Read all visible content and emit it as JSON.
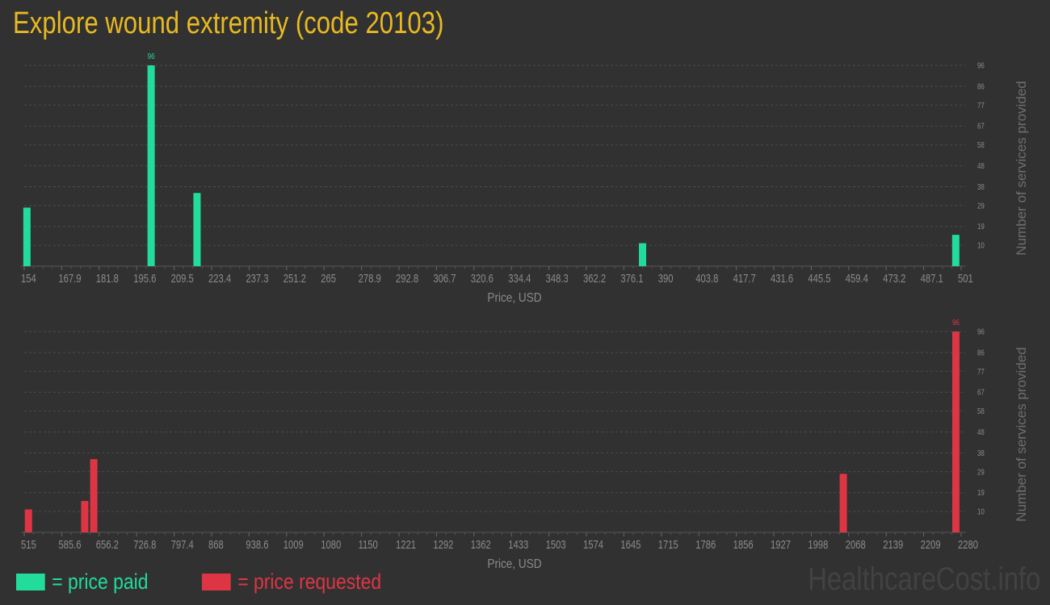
{
  "title": "Explore wound extremity (code 20103)",
  "legend": [
    {
      "label": "= price paid",
      "color": "#21dc9b"
    },
    {
      "label": "= price requested",
      "color": "#de3545"
    }
  ],
  "watermark": "HealthcareCost.info",
  "chart_data": [
    {
      "type": "bar",
      "xlabel": "Price, USD",
      "ylabel": "Number of services provided",
      "color": "#21dc9b",
      "xlim": [
        154,
        501
      ],
      "ylim": [
        0,
        96
      ],
      "grid": true,
      "x_ticks": [
        "154",
        "167.9",
        "181.8",
        "195.6",
        "209.5",
        "223.4",
        "237.3",
        "251.2",
        "265",
        "278.9",
        "292.8",
        "306.7",
        "320.6",
        "334.4",
        "348.3",
        "362.2",
        "376.1",
        "390",
        "403.8",
        "417.7",
        "431.6",
        "445.5",
        "459.4",
        "473.2",
        "487.1",
        "501"
      ],
      "y_ticks": [
        "10",
        "19",
        "29",
        "38",
        "48",
        "58",
        "67",
        "77",
        "86",
        "96"
      ],
      "bars": [
        {
          "x": 155,
          "value": 28
        },
        {
          "x": 201,
          "value": 96,
          "label": "96"
        },
        {
          "x": 218,
          "value": 35
        },
        {
          "x": 383,
          "value": 11
        },
        {
          "x": 499,
          "value": 15
        }
      ]
    },
    {
      "type": "bar",
      "xlabel": "Price, USD",
      "ylabel": "Number of services provided",
      "color": "#de3545",
      "xlim": [
        515,
        2280
      ],
      "ylim": [
        0,
        96
      ],
      "grid": true,
      "x_ticks": [
        "515",
        "585.6",
        "656.2",
        "726.8",
        "797.4",
        "868",
        "938.6",
        "1009",
        "1080",
        "1150",
        "1221",
        "1292",
        "1362",
        "1433",
        "1503",
        "1574",
        "1645",
        "1715",
        "1786",
        "1856",
        "1927",
        "1998",
        "2068",
        "2139",
        "2209",
        "2280"
      ],
      "y_ticks": [
        "10",
        "19",
        "29",
        "38",
        "48",
        "58",
        "67",
        "77",
        "86",
        "96"
      ],
      "bars": [
        {
          "x": 523,
          "value": 11
        },
        {
          "x": 629,
          "value": 15
        },
        {
          "x": 646,
          "value": 35
        },
        {
          "x": 2058,
          "value": 28
        },
        {
          "x": 2270,
          "value": 96,
          "label": "96"
        }
      ]
    }
  ]
}
